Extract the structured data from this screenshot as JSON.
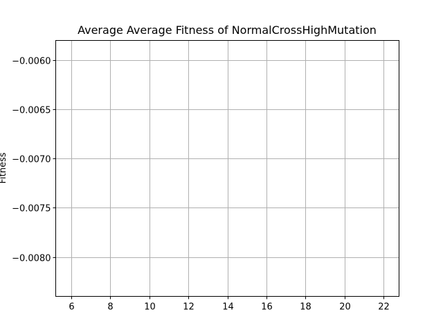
{
  "chart_data": {
    "type": "line",
    "title": "Average Average Fitness of NormalCrossHighMutation",
    "xlabel": "",
    "ylabel": "Fitness",
    "xlim": [
      5.2,
      22.8
    ],
    "ylim": [
      -0.0084,
      -0.0058
    ],
    "x_ticks": [
      6,
      8,
      10,
      12,
      14,
      16,
      18,
      20,
      22
    ],
    "x_tick_labels": [
      "6",
      "8",
      "10",
      "12",
      "14",
      "16",
      "18",
      "20",
      "22"
    ],
    "y_ticks": [
      -0.006,
      -0.0065,
      -0.007,
      -0.0075,
      -0.008
    ],
    "y_tick_labels": [
      "−0.0060",
      "−0.0065",
      "−0.0070",
      "−0.0075",
      "−0.0080"
    ],
    "grid": true,
    "series": []
  }
}
